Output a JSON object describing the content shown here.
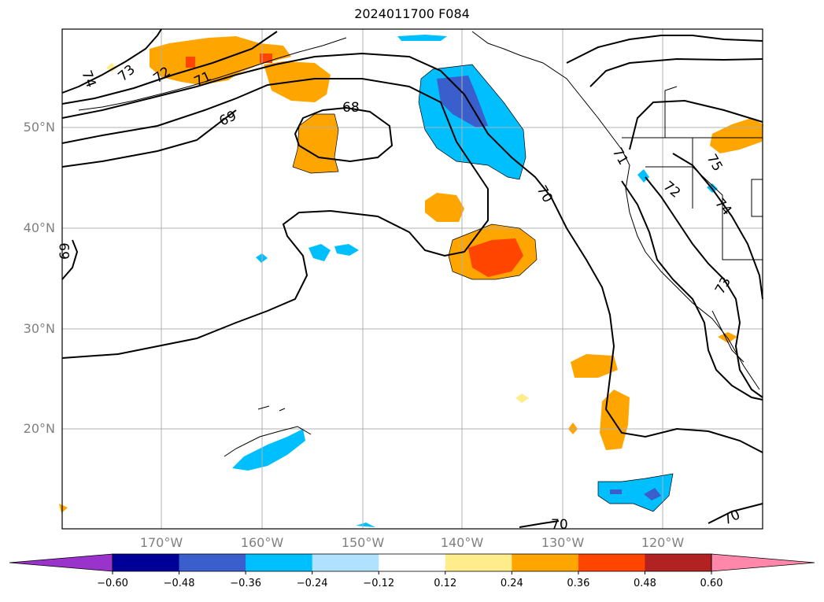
{
  "title": "2024011700 F084",
  "map": {
    "lat_labels": [
      "50°N",
      "40°N",
      "30°N",
      "20°N"
    ],
    "lon_labels": [
      "170°W",
      "160°W",
      "150°W",
      "140°W",
      "130°W",
      "120°W"
    ],
    "contour_labels": [
      "74",
      "73",
      "72",
      "71",
      "69",
      "68",
      "70",
      "69",
      "71",
      "72",
      "73",
      "74",
      "75",
      "73",
      "70",
      "70"
    ]
  },
  "colorbar": {
    "ticks": [
      "−0.60",
      "−0.48",
      "−0.36",
      "−0.24",
      "−0.12",
      "0.12",
      "0.24",
      "0.36",
      "0.48",
      "0.60"
    ],
    "colors": [
      "#9933cc",
      "#000099",
      "#3a5fcd",
      "#00bfff",
      "#b0e2ff",
      "#ffffff",
      "#ffec8b",
      "#ffa500",
      "#ff4500",
      "#b22222",
      "#ff88aa"
    ],
    "under_color": "#9933cc",
    "over_color": "#ff88aa"
  }
}
